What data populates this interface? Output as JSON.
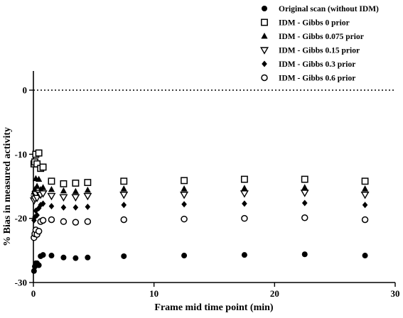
{
  "chart_data": {
    "type": "scatter",
    "title": "",
    "xlabel": "Frame mid time point (min)",
    "ylabel": "% Bias in measured activity",
    "xlim": [
      0,
      30
    ],
    "ylim": [
      -30,
      0
    ],
    "xticks": [
      0,
      10,
      20,
      30
    ],
    "yticks": [
      0,
      -10,
      -20,
      -30
    ],
    "x_tick_labels": [
      "0",
      "10",
      "20",
      "30"
    ],
    "y_tick_labels": [
      "0",
      "-10",
      "-20",
      "-30"
    ],
    "reference_line": {
      "y": 0,
      "style": "dotted"
    },
    "grid": false,
    "legend_position": "top-right",
    "x": [
      0.05,
      0.12,
      0.2,
      0.3,
      0.45,
      0.6,
      0.8,
      1.5,
      2.5,
      3.5,
      4.5,
      7.5,
      12.5,
      17.5,
      22.5,
      27.5
    ],
    "series": [
      {
        "name": "Original scan (without IDM)",
        "marker": "filled-circle",
        "values": [
          -28.2,
          -27.5,
          -27.0,
          -27.0,
          -27.3,
          -25.9,
          -25.7,
          -25.8,
          -26.1,
          -26.2,
          -26.1,
          -25.9,
          -25.8,
          -25.7,
          -25.6,
          -25.8
        ]
      },
      {
        "name": "IDM - Gibbs 0 prior",
        "marker": "open-square",
        "values": [
          -11.5,
          -11.2,
          -10.0,
          -11.5,
          -9.8,
          -12.2,
          -12.0,
          -14.2,
          -14.6,
          -14.5,
          -14.4,
          -14.2,
          -14.1,
          -13.9,
          -13.9,
          -14.2
        ]
      },
      {
        "name": "IDM - Gibbs 0.075 prior",
        "marker": "filled-triangle",
        "values": [
          -15.9,
          -15.5,
          -13.8,
          -15.0,
          -13.9,
          -15.5,
          -15.2,
          -15.5,
          -15.7,
          -15.8,
          -15.6,
          -15.4,
          -15.4,
          -15.3,
          -15.2,
          -15.4
        ]
      },
      {
        "name": "IDM - Gibbs 0.15 prior",
        "marker": "open-down-triangle",
        "values": [
          -17.2,
          -16.9,
          -16.2,
          -16.8,
          -16.0,
          -16.3,
          -16.1,
          -16.5,
          -16.7,
          -16.7,
          -16.5,
          -16.3,
          -16.3,
          -16.1,
          -16.0,
          -16.3
        ]
      },
      {
        "name": "IDM - Gibbs 0.3 prior",
        "marker": "filled-diamond",
        "values": [
          -20.3,
          -19.8,
          -18.8,
          -19.5,
          -18.4,
          -17.9,
          -17.7,
          -18.1,
          -18.3,
          -18.3,
          -18.2,
          -17.9,
          -17.8,
          -17.7,
          -17.6,
          -17.9
        ]
      },
      {
        "name": "IDM - Gibbs 0.6 prior",
        "marker": "open-circle",
        "values": [
          -23.0,
          -22.4,
          -21.8,
          -22.5,
          -22.0,
          -20.5,
          -20.3,
          -20.2,
          -20.5,
          -20.6,
          -20.5,
          -20.2,
          -20.1,
          -20.0,
          -19.9,
          -20.2
        ]
      }
    ]
  }
}
